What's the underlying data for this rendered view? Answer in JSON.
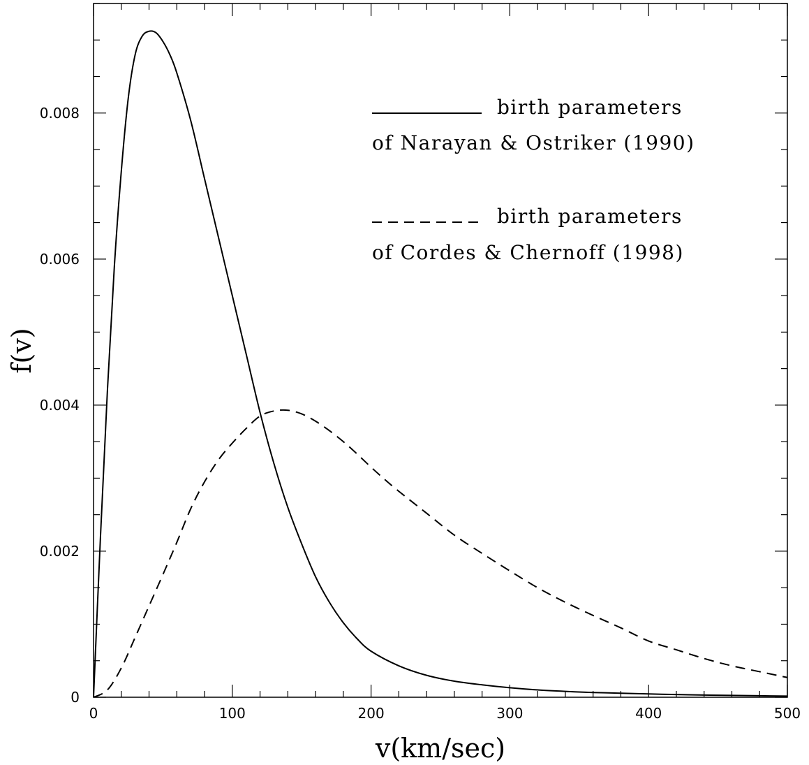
{
  "chart_data": {
    "type": "line",
    "xlabel": "v(km/sec)",
    "ylabel": "f(v)",
    "xlim": [
      0,
      500
    ],
    "ylim": [
      0,
      0.0095
    ],
    "x_ticks": [
      0,
      100,
      200,
      300,
      400,
      500
    ],
    "x_tick_labels": [
      "0",
      "100",
      "200",
      "300",
      "400",
      "500"
    ],
    "y_ticks": [
      0,
      0.002,
      0.004,
      0.006,
      0.008
    ],
    "y_tick_labels": [
      "0",
      "0.002",
      "0.004",
      "0.006",
      "0.008"
    ],
    "x_minor_step": 20,
    "y_minor_step": 0.0005,
    "grid": false,
    "legend_position": "top-right",
    "legend": [
      {
        "line1": "birth parameters",
        "line2": "of Narayan & Ostriker (1990)",
        "style": "solid"
      },
      {
        "line1": "birth parameters",
        "line2": "of Cordes & Chernoff (1998)",
        "style": "dashed"
      }
    ],
    "series": [
      {
        "style": "solid",
        "x": [
          0,
          5,
          10,
          15,
          20,
          25,
          30,
          35,
          40,
          45,
          50,
          55,
          60,
          70,
          80,
          90,
          100,
          110,
          120,
          130,
          140,
          150,
          160,
          170,
          180,
          190,
          200,
          220,
          240,
          260,
          280,
          300,
          320,
          340,
          360,
          380,
          400,
          420,
          440,
          460,
          480,
          500
        ],
        "y": [
          0,
          0.0022,
          0.0042,
          0.0059,
          0.0072,
          0.0082,
          0.0088,
          0.00905,
          0.00912,
          0.0091,
          0.00898,
          0.0088,
          0.00855,
          0.0079,
          0.0071,
          0.0063,
          0.0055,
          0.0047,
          0.0039,
          0.0032,
          0.0026,
          0.0021,
          0.00165,
          0.0013,
          0.00102,
          0.0008,
          0.00063,
          0.00043,
          0.0003,
          0.00022,
          0.00017,
          0.00013,
          0.0001,
          8e-05,
          6.5e-05,
          5.5e-05,
          4.5e-05,
          3.7e-05,
          3e-05,
          2.5e-05,
          2e-05,
          1.5e-05
        ]
      },
      {
        "style": "dashed",
        "x": [
          0,
          10,
          20,
          30,
          40,
          50,
          60,
          70,
          80,
          90,
          100,
          110,
          120,
          130,
          140,
          150,
          160,
          170,
          180,
          190,
          200,
          210,
          220,
          240,
          260,
          280,
          300,
          320,
          340,
          360,
          380,
          400,
          420,
          440,
          460,
          480,
          500
        ],
        "y": [
          0,
          0.0001,
          0.0004,
          0.00082,
          0.00125,
          0.00168,
          0.00212,
          0.00258,
          0.00295,
          0.00325,
          0.00348,
          0.00368,
          0.00385,
          0.00392,
          0.00393,
          0.00388,
          0.00378,
          0.00365,
          0.0035,
          0.00333,
          0.00315,
          0.00298,
          0.00282,
          0.00252,
          0.00222,
          0.00197,
          0.00173,
          0.0015,
          0.0013,
          0.00112,
          0.00095,
          0.00077,
          0.00065,
          0.00053,
          0.00043,
          0.00035,
          0.00027
        ]
      }
    ]
  }
}
